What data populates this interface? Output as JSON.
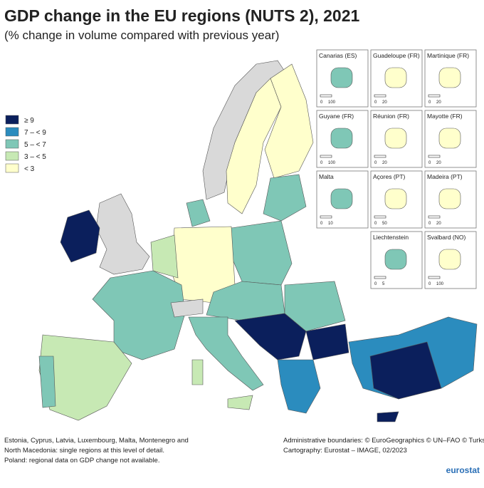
{
  "header": {
    "title": "GDP change in the EU regions (NUTS 2), 2021",
    "subtitle": "(% change in volume compared with previous year)"
  },
  "legend": {
    "items": [
      {
        "label": "≥ 9",
        "color": "#0b1f5c"
      },
      {
        "label": "7 – < 9",
        "color": "#2b8cbe"
      },
      {
        "label": "5 – < 7",
        "color": "#7fc7b6"
      },
      {
        "label": "3 – < 5",
        "color": "#c7e9b4"
      },
      {
        "label": "< 3",
        "color": "#ffffcc"
      }
    ]
  },
  "insets": [
    {
      "label": "Canarias (ES)",
      "scale": [
        "0",
        "100"
      ]
    },
    {
      "label": "Guadeloupe (FR)",
      "scale": [
        "0",
        "20"
      ]
    },
    {
      "label": "Martinique (FR)",
      "scale": [
        "0",
        "20"
      ]
    },
    {
      "label": "Guyane (FR)",
      "scale": [
        "0",
        "100"
      ]
    },
    {
      "label": "Réunion (FR)",
      "scale": [
        "0",
        "20"
      ]
    },
    {
      "label": "Mayotte (FR)",
      "scale": [
        "0",
        "20"
      ]
    },
    {
      "label": "Malta",
      "scale": [
        "0",
        "10"
      ]
    },
    {
      "label": "Açores (PT)",
      "scale": [
        "0",
        "50"
      ]
    },
    {
      "label": "Madeira (PT)",
      "scale": [
        "0",
        "20"
      ]
    },
    {
      "label": "Liechtenstein",
      "scale": [
        "0",
        "5"
      ]
    },
    {
      "label": "Svalbard (NO)",
      "scale": [
        "0",
        "100"
      ]
    }
  ],
  "notes": {
    "left": [
      "Estonia, Cyprus, Latvia, Luxembourg, Malta, Montenegro and",
      "North Macedonia: single regions at this level of detail.",
      "Poland: regional data on GDP change not available."
    ],
    "right": [
      "Administrative boundaries: © EuroGeographics © UN–FAO © Turkstat",
      "Cartography: Eurostat – IMAGE, 02/2023"
    ]
  },
  "logo": "eurostat"
}
